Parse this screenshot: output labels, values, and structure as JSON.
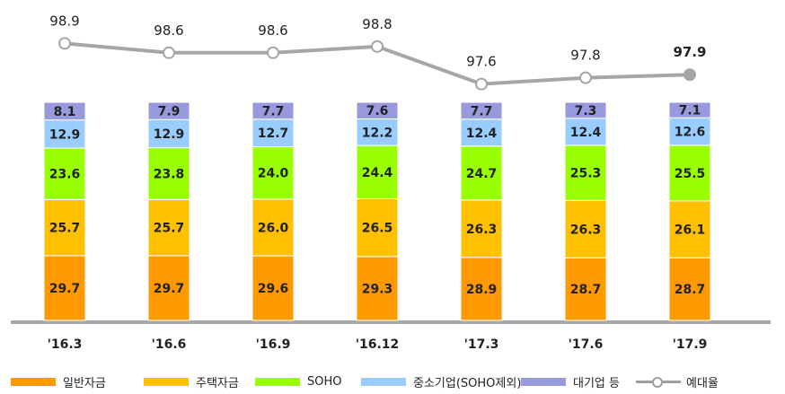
{
  "chart_data": {
    "type": "bar",
    "stacked": true,
    "categories": [
      "'16.3",
      "'16.6",
      "'16.9",
      "'16.12",
      "'17.3",
      "'17.6",
      "'17.9"
    ],
    "series": [
      {
        "name": "일반자금",
        "color": "#FF9900",
        "values": [
          29.7,
          29.7,
          29.6,
          29.3,
          28.9,
          28.7,
          28.7
        ]
      },
      {
        "name": "주택자금",
        "color": "#FFC000",
        "values": [
          25.7,
          25.7,
          26.0,
          26.5,
          26.3,
          26.3,
          26.1
        ]
      },
      {
        "name": "SOHO",
        "color": "#99FF00",
        "values": [
          23.6,
          23.8,
          24.0,
          24.4,
          24.7,
          25.3,
          25.5
        ]
      },
      {
        "name": "중소기업(SOHO제외)",
        "color": "#99CCFF",
        "values": [
          12.9,
          12.9,
          12.7,
          12.2,
          12.4,
          12.4,
          12.6
        ]
      },
      {
        "name": "대기업 등",
        "color": "#9999DD",
        "values": [
          8.1,
          7.9,
          7.7,
          7.6,
          7.7,
          7.3,
          7.1
        ]
      }
    ],
    "line": {
      "name": "예대율",
      "color": "#A6A6A6",
      "values": [
        98.9,
        98.6,
        98.6,
        98.8,
        97.6,
        97.8,
        97.9
      ],
      "value_labels": [
        "98.9",
        "98.6",
        "98.6",
        "98.8",
        "97.6",
        "97.8",
        "97.9"
      ]
    },
    "value_labels": [
      [
        "29.7",
        "29.7",
        "29.6",
        "29.3",
        "28.9",
        "28.7",
        "28.7"
      ],
      [
        "25.7",
        "25.7",
        "26.0",
        "26.5",
        "26.3",
        "26.3",
        "26.1"
      ],
      [
        "23.6",
        "23.8",
        "24.0",
        "24.4",
        "24.7",
        "25.3",
        "25.5"
      ],
      [
        "12.9",
        "12.9",
        "12.7",
        "12.2",
        "12.4",
        "12.4",
        "12.6"
      ],
      [
        "8.1",
        "7.9",
        "7.7",
        "7.6",
        "7.7",
        "7.3",
        "7.1"
      ]
    ],
    "ylim": [
      0,
      100
    ],
    "line_ylim": [
      96.5,
      100
    ],
    "grid": false,
    "legend_position": "bottom"
  }
}
